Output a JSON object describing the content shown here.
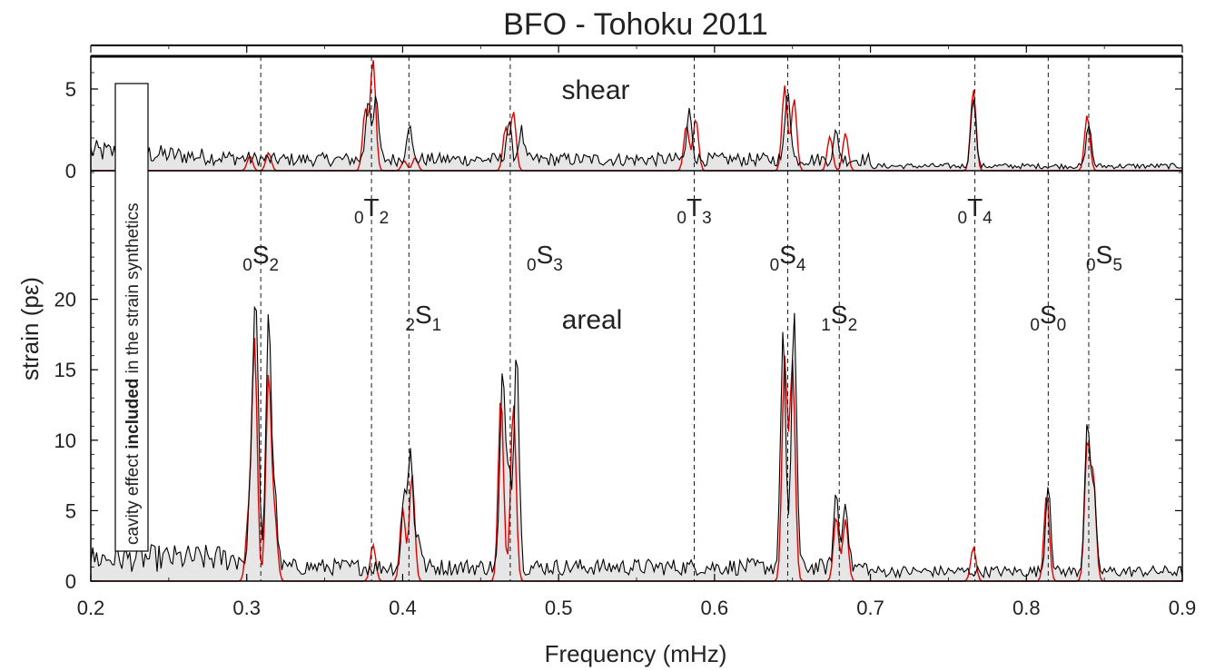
{
  "chart_data": {
    "type": "line",
    "title": "BFO - Tohoku 2011",
    "xlabel": "Frequency (mHz)",
    "ylabel": "strain (pε)",
    "xlim": [
      0.2,
      0.9
    ],
    "xticks": [
      "0.2",
      "0.3",
      "0.4",
      "0.5",
      "0.6",
      "0.7",
      "0.8",
      "0.9"
    ],
    "annotation": {
      "prefix": "cavity effect ",
      "bold": "included",
      "suffix": " in the strain synthetics"
    },
    "panels": [
      {
        "name": "shear",
        "label": "shear",
        "ylim": [
          0,
          7
        ],
        "yticks": [
          "0",
          "5"
        ],
        "series": [
          {
            "role": "observed",
            "color": "#000000",
            "fill": "#e6e6e6",
            "peaks": [
              {
                "f": 0.378,
                "a": 3.8
              },
              {
                "f": 0.383,
                "a": 3.6
              },
              {
                "f": 0.404,
                "a": 2.2
              },
              {
                "f": 0.468,
                "a": 2.2
              },
              {
                "f": 0.476,
                "a": 1.8
              },
              {
                "f": 0.584,
                "a": 3.0
              },
              {
                "f": 0.647,
                "a": 4.5
              },
              {
                "f": 0.678,
                "a": 1.6
              },
              {
                "f": 0.766,
                "a": 4.3
              },
              {
                "f": 0.84,
                "a": 2.6
              }
            ]
          },
          {
            "role": "synthetic",
            "color": "#e00000",
            "peaks": [
              {
                "f": 0.302,
                "a": 0.9
              },
              {
                "f": 0.314,
                "a": 1.1
              },
              {
                "f": 0.376,
                "a": 3.7
              },
              {
                "f": 0.381,
                "a": 6.8
              },
              {
                "f": 0.401,
                "a": 0.6
              },
              {
                "f": 0.408,
                "a": 0.8
              },
              {
                "f": 0.466,
                "a": 2.6
              },
              {
                "f": 0.471,
                "a": 3.6
              },
              {
                "f": 0.582,
                "a": 2.8
              },
              {
                "f": 0.588,
                "a": 3.2
              },
              {
                "f": 0.645,
                "a": 5.2
              },
              {
                "f": 0.651,
                "a": 4.4
              },
              {
                "f": 0.674,
                "a": 2.1
              },
              {
                "f": 0.684,
                "a": 2.3
              },
              {
                "f": 0.766,
                "a": 5.0
              },
              {
                "f": 0.839,
                "a": 3.4
              }
            ]
          }
        ]
      },
      {
        "name": "areal",
        "label": "areal",
        "ylim": [
          0,
          29
        ],
        "yticks": [
          "0",
          "5",
          "10",
          "15",
          "20"
        ],
        "series": [
          {
            "role": "observed",
            "color": "#000000",
            "fill": "#e6e6e6",
            "peaks": [
              {
                "f": 0.303,
                "a": 7.0
              },
              {
                "f": 0.306,
                "a": 18.0
              },
              {
                "f": 0.314,
                "a": 18.2
              },
              {
                "f": 0.318,
                "a": 5.0
              },
              {
                "f": 0.401,
                "a": 5.0
              },
              {
                "f": 0.405,
                "a": 8.1
              },
              {
                "f": 0.41,
                "a": 2.5
              },
              {
                "f": 0.464,
                "a": 13.4
              },
              {
                "f": 0.468,
                "a": 7.0
              },
              {
                "f": 0.473,
                "a": 15.8
              },
              {
                "f": 0.644,
                "a": 16.8
              },
              {
                "f": 0.651,
                "a": 18.3
              },
              {
                "f": 0.678,
                "a": 5.2
              },
              {
                "f": 0.684,
                "a": 5.0
              },
              {
                "f": 0.814,
                "a": 6.4
              },
              {
                "f": 0.839,
                "a": 10.5
              },
              {
                "f": 0.843,
                "a": 6.0
              }
            ]
          },
          {
            "role": "synthetic",
            "color": "#e00000",
            "peaks": [
              {
                "f": 0.305,
                "a": 17.0
              },
              {
                "f": 0.301,
                "a": 4.2
              },
              {
                "f": 0.314,
                "a": 14.6
              },
              {
                "f": 0.318,
                "a": 4.3
              },
              {
                "f": 0.381,
                "a": 2.6
              },
              {
                "f": 0.4,
                "a": 5.2
              },
              {
                "f": 0.406,
                "a": 7.6
              },
              {
                "f": 0.463,
                "a": 13.2
              },
              {
                "f": 0.471,
                "a": 12.6
              },
              {
                "f": 0.645,
                "a": 15.8
              },
              {
                "f": 0.65,
                "a": 15.5
              },
              {
                "f": 0.678,
                "a": 4.6
              },
              {
                "f": 0.684,
                "a": 4.4
              },
              {
                "f": 0.766,
                "a": 2.4
              },
              {
                "f": 0.813,
                "a": 6.2
              },
              {
                "f": 0.839,
                "a": 9.6
              },
              {
                "f": 0.843,
                "a": 7.2
              }
            ]
          }
        ]
      }
    ],
    "modes": [
      {
        "n": "0",
        "type": "T",
        "l": "2",
        "f": 0.38,
        "row": "upper"
      },
      {
        "n": "0",
        "type": "T",
        "l": "3",
        "f": 0.587,
        "row": "upper"
      },
      {
        "n": "0",
        "type": "T",
        "l": "4",
        "f": 0.767,
        "row": "upper"
      },
      {
        "n": "0",
        "type": "S",
        "l": "2",
        "f": 0.309,
        "row": "middle"
      },
      {
        "n": "0",
        "type": "S",
        "l": "3",
        "f": 0.469,
        "row": "middle",
        "dx": 38
      },
      {
        "n": "0",
        "type": "S",
        "l": "4",
        "f": 0.647,
        "row": "middle"
      },
      {
        "n": "0",
        "type": "S",
        "l": "5",
        "f": 0.84,
        "row": "middle",
        "dx": 17
      },
      {
        "n": "2",
        "type": "S",
        "l": "1",
        "f": 0.404,
        "row": "lower",
        "dx": 16
      },
      {
        "n": "1",
        "type": "S",
        "l": "2",
        "f": 0.68,
        "row": "lower"
      },
      {
        "n": "0",
        "type": "S",
        "l": "0",
        "f": 0.814,
        "row": "lower"
      }
    ]
  }
}
